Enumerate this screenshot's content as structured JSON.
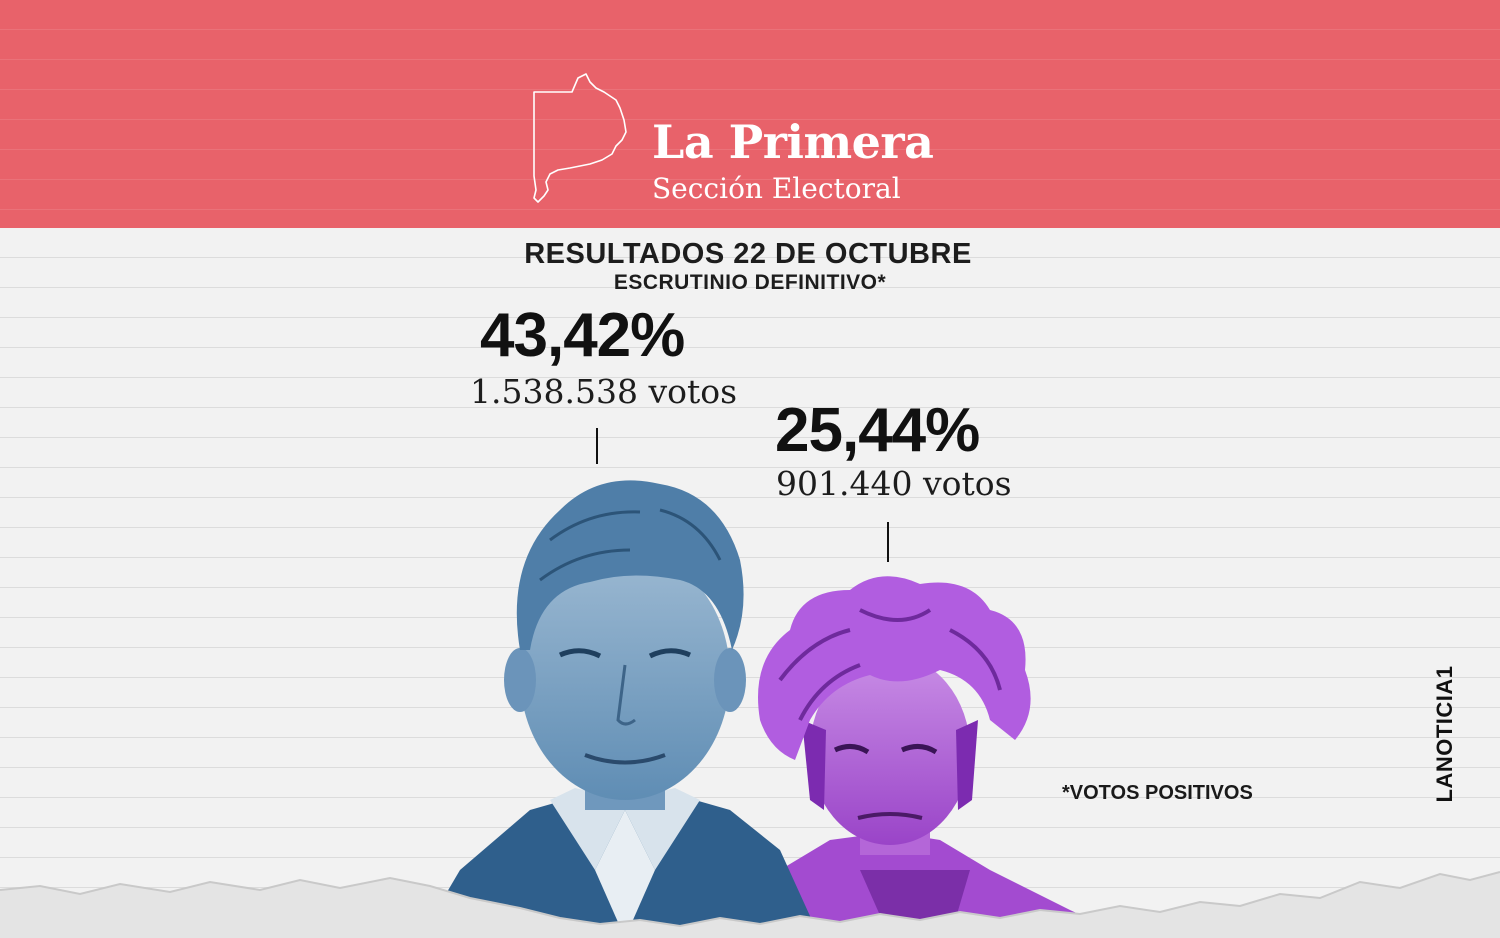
{
  "banner": {
    "title": "La Primera",
    "subtitle": "Sección Electoral",
    "color": "#e8626a",
    "icon": "province-map-outline-icon"
  },
  "heading": {
    "main": "RESULTADOS 22 DE OCTUBRE",
    "sub": "ESCRUTINIO DEFINITIVO*"
  },
  "candidates": [
    {
      "percent": "43,42%",
      "votes": "1.538.538 votos",
      "photo_tint": "#3f78aa"
    },
    {
      "percent": "25,44%",
      "votes": "901.440 votos",
      "photo_tint": "#a34bd0"
    }
  ],
  "footnote": "*VOTOS POSITIVOS",
  "logo": "LANOTICIA1"
}
